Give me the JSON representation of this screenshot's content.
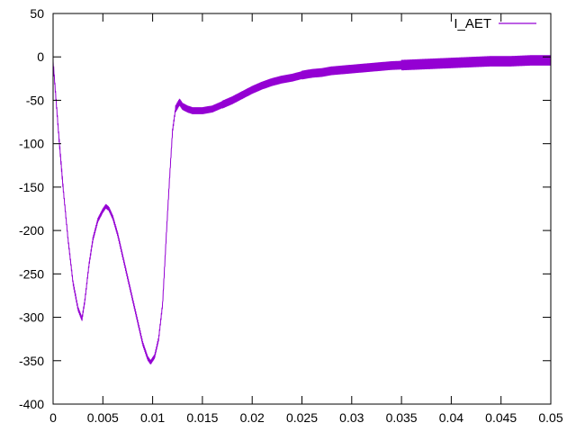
{
  "chart_data": {
    "type": "line",
    "title": "",
    "xlabel": "",
    "ylabel": "",
    "xlim": [
      0,
      0.05
    ],
    "ylim": [
      -400,
      50
    ],
    "x_ticks": [
      0,
      0.005,
      0.01,
      0.015,
      0.02,
      0.025,
      0.03,
      0.035,
      0.04,
      0.045,
      0.05
    ],
    "x_tick_labels": [
      "0",
      "0.005",
      "0.01",
      "0.015",
      "0.02",
      "0.025",
      "0.03",
      "0.035",
      "0.04",
      "0.045",
      "0.05"
    ],
    "y_ticks": [
      50,
      0,
      -50,
      -100,
      -150,
      -200,
      -250,
      -300,
      -350,
      -400
    ],
    "y_tick_labels": [
      "50",
      "0",
      "-50",
      "-100",
      "-150",
      "-200",
      "-250",
      "-300",
      "-350",
      "-400"
    ],
    "grid": false,
    "legend_position": "top-right",
    "series": [
      {
        "name": "I_AET",
        "color": "#9400d3",
        "points": [
          [
            0,
            -5
          ],
          [
            0.0003,
            -50
          ],
          [
            0.0006,
            -95
          ],
          [
            0.001,
            -150
          ],
          [
            0.0015,
            -210
          ],
          [
            0.002,
            -260
          ],
          [
            0.0025,
            -290
          ],
          [
            0.0029,
            -302
          ],
          [
            0.0032,
            -280
          ],
          [
            0.0036,
            -240
          ],
          [
            0.004,
            -210
          ],
          [
            0.0045,
            -188
          ],
          [
            0.005,
            -177
          ],
          [
            0.0053,
            -172
          ],
          [
            0.0056,
            -175
          ],
          [
            0.006,
            -185
          ],
          [
            0.0065,
            -205
          ],
          [
            0.007,
            -230
          ],
          [
            0.0075,
            -255
          ],
          [
            0.008,
            -280
          ],
          [
            0.0085,
            -305
          ],
          [
            0.009,
            -330
          ],
          [
            0.0095,
            -347
          ],
          [
            0.0098,
            -352
          ],
          [
            0.0102,
            -345
          ],
          [
            0.0106,
            -325
          ],
          [
            0.011,
            -285
          ],
          [
            0.0114,
            -200
          ],
          [
            0.0117,
            -140
          ],
          [
            0.012,
            -85
          ],
          [
            0.0123,
            -60
          ],
          [
            0.0127,
            -52
          ],
          [
            0.013,
            -57
          ],
          [
            0.0135,
            -60
          ],
          [
            0.014,
            -62
          ],
          [
            0.015,
            -62
          ],
          [
            0.016,
            -60
          ],
          [
            0.017,
            -55
          ],
          [
            0.018,
            -50
          ],
          [
            0.019,
            -44
          ],
          [
            0.02,
            -38
          ],
          [
            0.021,
            -33
          ],
          [
            0.022,
            -29
          ],
          [
            0.023,
            -26
          ],
          [
            0.024,
            -24
          ],
          [
            0.025,
            -21
          ],
          [
            0.026,
            -19
          ],
          [
            0.027,
            -18
          ],
          [
            0.028,
            -16
          ],
          [
            0.03,
            -14
          ],
          [
            0.032,
            -12
          ],
          [
            0.034,
            -10
          ],
          [
            0.036,
            -9
          ],
          [
            0.038,
            -8
          ],
          [
            0.04,
            -7
          ],
          [
            0.042,
            -6
          ],
          [
            0.044,
            -5
          ],
          [
            0.046,
            -5
          ],
          [
            0.048,
            -4
          ],
          [
            0.05,
            -4
          ]
        ]
      }
    ]
  }
}
